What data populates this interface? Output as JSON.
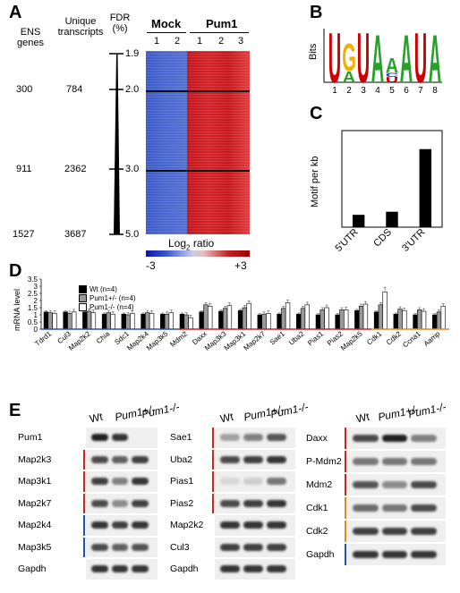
{
  "panels": [
    "A",
    "B",
    "C",
    "D",
    "E"
  ],
  "panelA": {
    "col_ens": "ENS\ngenes",
    "col_unique": "Unique\ntranscripts",
    "col_fdr": "FDR\n(%)",
    "rows": [
      {
        "ens": "300",
        "unique": "784",
        "fdr": "2.0"
      },
      {
        "ens": "911",
        "unique": "2362",
        "fdr": "3.0"
      },
      {
        "ens": "1527",
        "unique": "3687",
        "fdr": "5.0"
      }
    ],
    "fdr_top": "1.9",
    "group_mock": "Mock",
    "group_pum1": "Pum1",
    "lane_mock": [
      "1",
      "2"
    ],
    "lane_pum1": [
      "1",
      "2",
      "3"
    ],
    "legend_title": "Log",
    "legend_sub": "2",
    "legend_title2": " ratio",
    "legend_min": "-3",
    "legend_max": "+3"
  },
  "panelB": {
    "ylabel": "Bits",
    "positions": [
      "1",
      "2",
      "3",
      "4",
      "5",
      "6",
      "7",
      "8"
    ],
    "letters": [
      {
        "pos": 1,
        "stack": [
          {
            "ch": "U",
            "color": "#cc0000",
            "h": 1.0
          }
        ]
      },
      {
        "pos": 2,
        "stack": [
          {
            "ch": "A",
            "color": "#2ca02c",
            "h": 0.22
          },
          {
            "ch": "G",
            "color": "#f0b000",
            "h": 0.55
          }
        ]
      },
      {
        "pos": 3,
        "stack": [
          {
            "ch": "U",
            "color": "#cc0000",
            "h": 1.0
          }
        ]
      },
      {
        "pos": 4,
        "stack": [
          {
            "ch": "A",
            "color": "#2ca02c",
            "h": 0.95
          }
        ]
      },
      {
        "pos": 5,
        "stack": [
          {
            "ch": "U",
            "color": "#cc0000",
            "h": 0.1
          },
          {
            "ch": "C",
            "color": "#1f3fbf",
            "h": 0.08
          },
          {
            "ch": "A",
            "color": "#2ca02c",
            "h": 0.3
          }
        ]
      },
      {
        "pos": 6,
        "stack": [
          {
            "ch": "A",
            "color": "#2ca02c",
            "h": 0.95
          }
        ]
      },
      {
        "pos": 7,
        "stack": [
          {
            "ch": "U",
            "color": "#cc0000",
            "h": 1.0
          }
        ]
      },
      {
        "pos": 8,
        "stack": [
          {
            "ch": "A",
            "color": "#2ca02c",
            "h": 0.95
          }
        ]
      }
    ]
  },
  "panelC": {
    "ylabel": "Motif per kb",
    "chart_data": {
      "type": "bar",
      "categories": [
        "5'UTR",
        "CDS",
        "3'UTR"
      ],
      "values": [
        0.32,
        0.4,
        2.02
      ],
      "ylim": [
        0,
        2.5
      ],
      "yticks": [
        "0",
        "0.5",
        "1",
        "1.5",
        "2",
        "2.5"
      ]
    }
  },
  "panelD": {
    "ylabel": "mRNA level",
    "legend": [
      "Wt (n=4)",
      "Pum1+/- (n=4)",
      "Pum1-/- (n=4)"
    ],
    "colors": {
      "wt": "#000000",
      "het": "#999999",
      "ko": "#ffffff",
      "red": "#cc2222",
      "blue": "#2255aa",
      "orange": "#e08a1e"
    },
    "chart_data": {
      "type": "bar",
      "categories": [
        "Tdrd1",
        "Cul3",
        "Map2k2",
        "Chia",
        "Sdc1",
        "Map2k4",
        "Map3k5",
        "Mdm2",
        "Daxx",
        "Map3k3",
        "Map3k1",
        "Map2k7",
        "Sae1",
        "Uba2",
        "Pias1",
        "Pias2",
        "Map2k5",
        "Cdk1",
        "Cdk2",
        "Ccna1",
        "Aamp"
      ],
      "ylim": [
        0,
        3.5
      ],
      "yticks": [
        "0",
        "0.5",
        "1",
        "1.5",
        "2",
        "2.5",
        "3",
        "3.5"
      ],
      "series": [
        {
          "name": "Wt (n=4)",
          "values": [
            1.2,
            1.2,
            1.2,
            1.05,
            1.05,
            1.05,
            1.05,
            1.05,
            1.2,
            1.25,
            1.3,
            1.0,
            1.05,
            1.05,
            1.0,
            1.0,
            1.3,
            1.2,
            1.05,
            1.0,
            1.0
          ]
        },
        {
          "name": "Pum1+/- (n=4)",
          "values": [
            1.15,
            1.1,
            1.25,
            1.15,
            1.0,
            1.15,
            1.05,
            1.0,
            1.7,
            1.45,
            1.5,
            1.05,
            1.45,
            1.45,
            1.35,
            1.35,
            1.6,
            1.7,
            1.4,
            1.35,
            1.2
          ]
        },
        {
          "name": "Pum1-/- (n=4)",
          "values": [
            1.1,
            1.2,
            1.15,
            1.05,
            1.1,
            1.1,
            1.15,
            0.8,
            1.6,
            1.65,
            1.8,
            1.1,
            1.85,
            1.7,
            1.5,
            1.35,
            1.75,
            2.6,
            1.3,
            1.25,
            1.6
          ]
        }
      ],
      "group_colors": [
        "blue",
        "blue",
        "blue",
        "blue",
        "blue",
        "blue",
        "blue",
        "red",
        "red",
        "red",
        "red",
        "red",
        "red",
        "red",
        "red",
        "red",
        "red",
        "orange",
        "orange",
        "orange",
        "orange"
      ]
    }
  },
  "panelE": {
    "genotype_wt": "Wt",
    "genotype_het": "Pum1+/-",
    "genotype_ko": "Pum1-/-",
    "blot1": [
      "Pum1",
      "Map2k3",
      "Map3k1",
      "Map2k7",
      "Map2k4",
      "Map3k5",
      "Gapdh"
    ],
    "blot2": [
      "Sae1",
      "Uba2",
      "Pias1",
      "Pias2",
      "Map2k2",
      "Cul3",
      "Gapdh"
    ],
    "blot3": [
      "Daxx",
      "P-Mdm2",
      "Mdm2",
      "Cdk1",
      "Cdk2",
      "Gapdh"
    ]
  }
}
